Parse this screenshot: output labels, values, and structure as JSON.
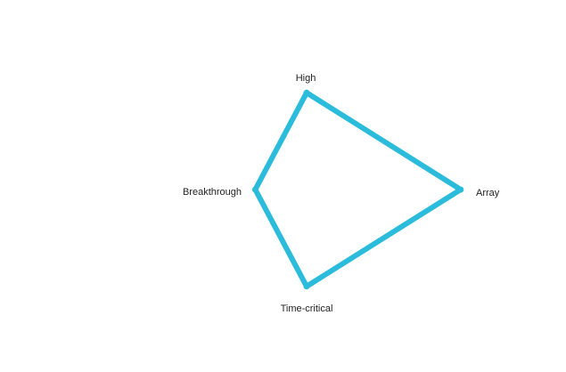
{
  "chart_data": {
    "type": "radar",
    "axes": [
      "High",
      "Array",
      "Time-critical",
      "Breakthrough"
    ],
    "series": [
      {
        "name": "",
        "color": "#2bbcdc",
        "values": [
          0.85,
          1.35,
          0.85,
          0.45
        ]
      }
    ],
    "title": "",
    "grid": false,
    "legend": "none"
  }
}
